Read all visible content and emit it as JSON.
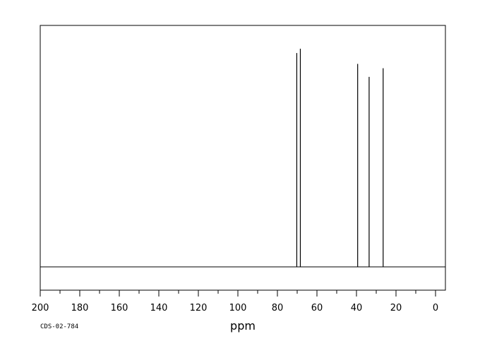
{
  "chart_data": {
    "type": "line",
    "xlabel": "ppm",
    "xlim": [
      200,
      -5
    ],
    "x_reversed": true,
    "x_ticks": [
      200,
      180,
      160,
      140,
      120,
      100,
      80,
      60,
      40,
      20,
      0
    ],
    "grid": false,
    "legend": "none",
    "annotations": [
      "CDS-02-784"
    ],
    "peaks": [
      {
        "x": 70.2,
        "height": 0.99
      },
      {
        "x": 68.4,
        "height": 1.01
      },
      {
        "x": 39.4,
        "height": 0.94
      },
      {
        "x": 33.6,
        "height": 0.88
      },
      {
        "x": 26.5,
        "height": 0.92
      }
    ],
    "peak_base": 0,
    "peak_max": 1.02
  }
}
